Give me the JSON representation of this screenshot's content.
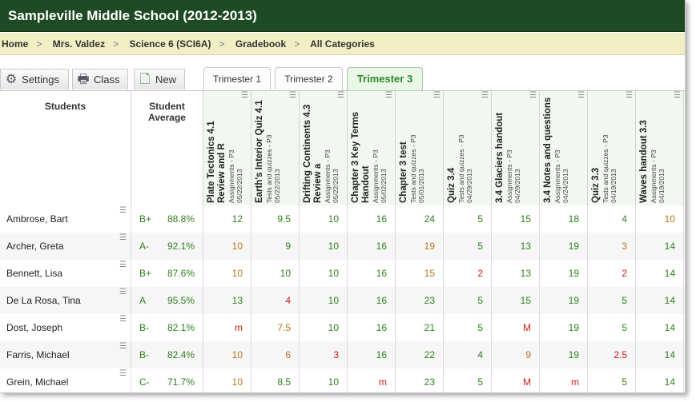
{
  "app": {
    "title": "Sampleville Middle School (2012-2013)"
  },
  "breadcrumb": [
    "Home",
    "Mrs. Valdez",
    "Science 6 (SCI6A)",
    "Gradebook",
    "All Categories"
  ],
  "toolbar": {
    "settings": "Settings",
    "class": "Class",
    "new": "New"
  },
  "tabs": [
    "Trimester 1",
    "Trimester 2",
    "Trimester 3"
  ],
  "columns": {
    "students": "Students",
    "average": "Student Average"
  },
  "assignments": [
    {
      "title": "Plate Tectonics 4.1 Review and R",
      "category": "Assignments - P3",
      "date": "05/22/2013"
    },
    {
      "title": "Earth's Interior Quiz 4.1",
      "category": "Tests and quizzes - P3",
      "date": "05/22/2013"
    },
    {
      "title": "Drifting Continents 4.3 Review a",
      "category": "Assignments - P3",
      "date": "05/22/2013"
    },
    {
      "title": "Chapter 3 Key Terms Handout",
      "category": "Assignments - P3",
      "date": "05/02/2013"
    },
    {
      "title": "Chapter 3 test",
      "category": "Tests and quizzes - P3",
      "date": "05/01/2013"
    },
    {
      "title": "Quiz 3.4",
      "category": "Tests and quizzes - P3",
      "date": "04/29/2013"
    },
    {
      "title": "3.4 Glaciers handout",
      "category": "Assignments - P3",
      "date": "04/29/2013"
    },
    {
      "title": "3.4 Notes and questions",
      "category": "Assignments - P3",
      "date": "04/24/2013"
    },
    {
      "title": "Quiz 3.3",
      "category": "Tests and quizzes - P3",
      "date": "04/19/2013"
    },
    {
      "title": "Waves handout 3.3",
      "category": "Assignments - P3",
      "date": "04/19/2013"
    }
  ],
  "students": [
    {
      "name": "Ambrose, Bart",
      "letter": "B+",
      "percent": "88.8%",
      "scores": [
        "12",
        "9.5",
        "10",
        "16",
        "24",
        "5",
        "15",
        "18",
        "4",
        "10"
      ],
      "status": [
        "green",
        "green",
        "green",
        "green",
        "green",
        "green",
        "green",
        "green",
        "green",
        "orange"
      ]
    },
    {
      "name": "Archer, Greta",
      "letter": "A-",
      "percent": "92.1%",
      "scores": [
        "10",
        "9",
        "10",
        "16",
        "19",
        "5",
        "13",
        "19",
        "3",
        "14"
      ],
      "status": [
        "orange",
        "green",
        "green",
        "green",
        "orange",
        "green",
        "green",
        "green",
        "orange",
        "green"
      ]
    },
    {
      "name": "Bennett, Lisa",
      "letter": "B+",
      "percent": "87.6%",
      "scores": [
        "10",
        "10",
        "10",
        "16",
        "15",
        "2",
        "13",
        "19",
        "2",
        "14"
      ],
      "status": [
        "orange",
        "green",
        "green",
        "green",
        "orange",
        "red",
        "green",
        "green",
        "red",
        "green"
      ]
    },
    {
      "name": "De La Rosa, Tina",
      "letter": "A",
      "percent": "95.5%",
      "scores": [
        "13",
        "4",
        "10",
        "16",
        "23",
        "5",
        "15",
        "19",
        "5",
        "14"
      ],
      "status": [
        "green",
        "red",
        "green",
        "green",
        "green",
        "green",
        "green",
        "green",
        "green",
        "green"
      ]
    },
    {
      "name": "Dost, Joseph",
      "letter": "B-",
      "percent": "82.1%",
      "scores": [
        "m",
        "7.5",
        "10",
        "16",
        "21",
        "5",
        "M",
        "19",
        "5",
        "14"
      ],
      "status": [
        "red",
        "orange",
        "green",
        "green",
        "green",
        "green",
        "red",
        "green",
        "green",
        "green"
      ]
    },
    {
      "name": "Farris, Michael",
      "letter": "B-",
      "percent": "82.4%",
      "scores": [
        "10",
        "6",
        "3",
        "16",
        "22",
        "4",
        "9",
        "19",
        "2.5",
        "14"
      ],
      "status": [
        "orange",
        "orange",
        "red",
        "green",
        "green",
        "green",
        "orange",
        "green",
        "red",
        "green"
      ]
    },
    {
      "name": "Grein, Michael",
      "letter": "C-",
      "percent": "71.7%",
      "scores": [
        "10",
        "8.5",
        "10",
        "m",
        "23",
        "5",
        "M",
        "m",
        "5",
        "14"
      ],
      "status": [
        "orange",
        "green",
        "green",
        "red",
        "green",
        "green",
        "red",
        "red",
        "green",
        "green"
      ]
    }
  ]
}
